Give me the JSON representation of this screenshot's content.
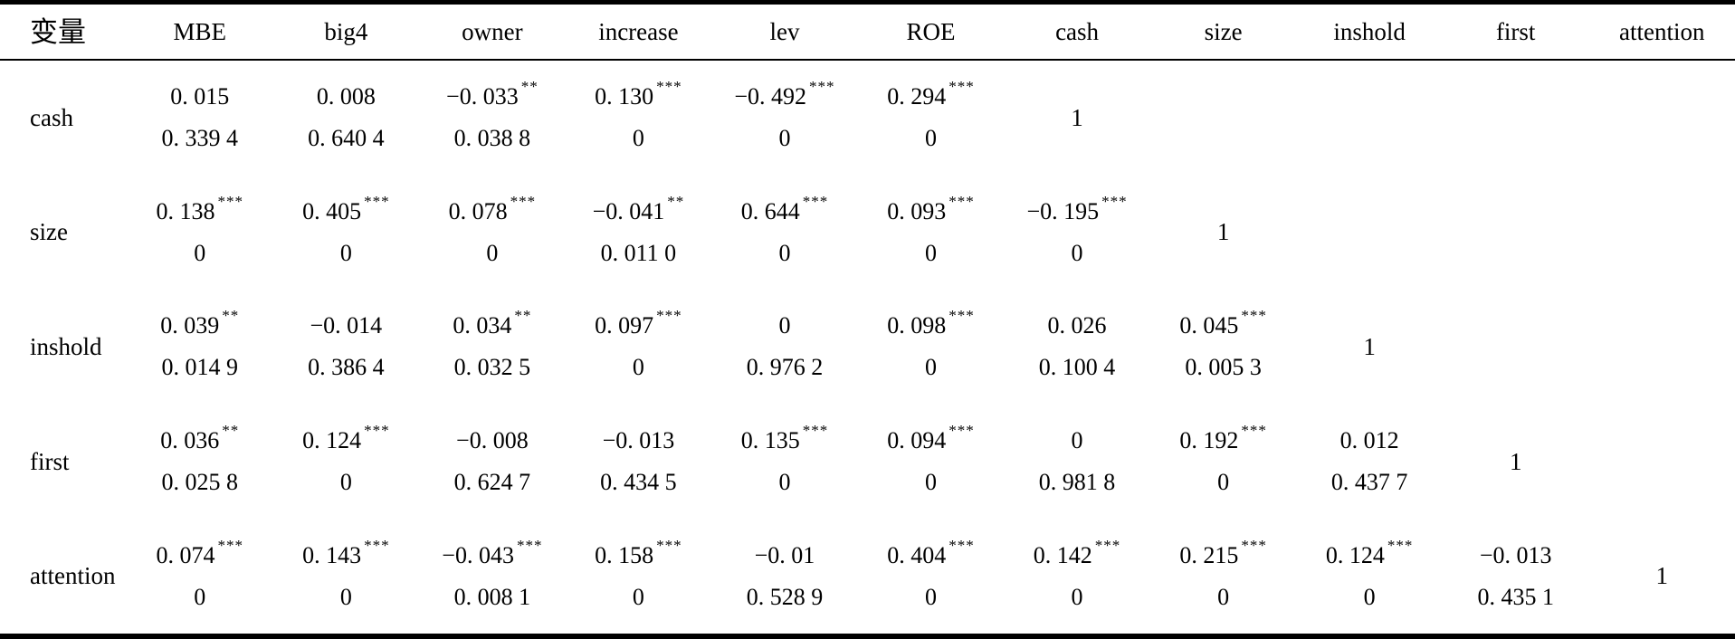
{
  "colors": {
    "text": "#000000",
    "background": "#ffffff",
    "rule": "#000000"
  },
  "table": {
    "columns": [
      {
        "key": "variable",
        "label": "变量"
      },
      {
        "key": "mbe",
        "label": "MBE"
      },
      {
        "key": "big4",
        "label": "big4"
      },
      {
        "key": "owner",
        "label": "owner"
      },
      {
        "key": "increase",
        "label": "increase"
      },
      {
        "key": "lev",
        "label": "lev"
      },
      {
        "key": "roe",
        "label": "ROE"
      },
      {
        "key": "cash",
        "label": "cash"
      },
      {
        "key": "size",
        "label": "size"
      },
      {
        "key": "inshold",
        "label": "inshold"
      },
      {
        "key": "first",
        "label": "first"
      },
      {
        "key": "attention",
        "label": "attention"
      }
    ],
    "rows": [
      {
        "label": "cash",
        "cells": [
          {
            "r": "0. 015",
            "s": "",
            "p": "0. 339 4"
          },
          {
            "r": "0. 008",
            "s": "",
            "p": "0. 640 4"
          },
          {
            "r": "−0. 033",
            "s": "**",
            "p": "0. 038 8"
          },
          {
            "r": "0. 130",
            "s": "***",
            "p": "0"
          },
          {
            "r": "−0. 492",
            "s": "***",
            "p": "0"
          },
          {
            "r": "0. 294",
            "s": "***",
            "p": "0"
          },
          {
            "d": "1"
          },
          null,
          null,
          null,
          null
        ]
      },
      {
        "label": "size",
        "cells": [
          {
            "r": "0. 138",
            "s": "***",
            "p": "0"
          },
          {
            "r": "0. 405",
            "s": "***",
            "p": "0"
          },
          {
            "r": "0. 078",
            "s": "***",
            "p": "0"
          },
          {
            "r": "−0. 041",
            "s": "**",
            "p": "0. 011 0"
          },
          {
            "r": "0. 644",
            "s": "***",
            "p": "0"
          },
          {
            "r": "0. 093",
            "s": "***",
            "p": "0"
          },
          {
            "r": "−0. 195",
            "s": "***",
            "p": "0"
          },
          {
            "d": "1"
          },
          null,
          null,
          null
        ]
      },
      {
        "label": "inshold",
        "cells": [
          {
            "r": "0. 039",
            "s": "**",
            "p": "0. 014 9"
          },
          {
            "r": "−0. 014",
            "s": "",
            "p": "0. 386 4"
          },
          {
            "r": "0. 034",
            "s": "**",
            "p": "0. 032 5"
          },
          {
            "r": "0. 097",
            "s": "***",
            "p": "0"
          },
          {
            "r": "0",
            "s": "",
            "p": "0. 976 2"
          },
          {
            "r": "0. 098",
            "s": "***",
            "p": "0"
          },
          {
            "r": "0. 026",
            "s": "",
            "p": "0. 100 4"
          },
          {
            "r": "0. 045",
            "s": "***",
            "p": "0. 005 3"
          },
          {
            "d": "1"
          },
          null,
          null
        ]
      },
      {
        "label": "first",
        "cells": [
          {
            "r": "0. 036",
            "s": "**",
            "p": "0. 025 8"
          },
          {
            "r": "0. 124",
            "s": "***",
            "p": "0"
          },
          {
            "r": "−0. 008",
            "s": "",
            "p": "0. 624 7"
          },
          {
            "r": "−0. 013",
            "s": "",
            "p": "0. 434 5"
          },
          {
            "r": "0. 135",
            "s": "***",
            "p": "0"
          },
          {
            "r": "0. 094",
            "s": "***",
            "p": "0"
          },
          {
            "r": "0",
            "s": "",
            "p": "0. 981 8"
          },
          {
            "r": "0. 192",
            "s": "***",
            "p": "0"
          },
          {
            "r": "0. 012",
            "s": "",
            "p": "0. 437 7"
          },
          {
            "d": "1"
          },
          null
        ]
      },
      {
        "label": "attention",
        "cells": [
          {
            "r": "0. 074",
            "s": "***",
            "p": "0"
          },
          {
            "r": "0. 143",
            "s": "***",
            "p": "0"
          },
          {
            "r": "−0. 043",
            "s": "***",
            "p": "0. 008 1"
          },
          {
            "r": "0. 158",
            "s": "***",
            "p": "0"
          },
          {
            "r": "−0. 01",
            "s": "",
            "p": "0. 528 9"
          },
          {
            "r": "0. 404",
            "s": "***",
            "p": "0"
          },
          {
            "r": "0. 142",
            "s": "***",
            "p": "0"
          },
          {
            "r": "0. 215",
            "s": "***",
            "p": "0"
          },
          {
            "r": "0. 124",
            "s": "***",
            "p": "0"
          },
          {
            "r": "−0. 013",
            "s": "",
            "p": "0. 435 1"
          },
          {
            "d": "1"
          }
        ]
      }
    ]
  }
}
